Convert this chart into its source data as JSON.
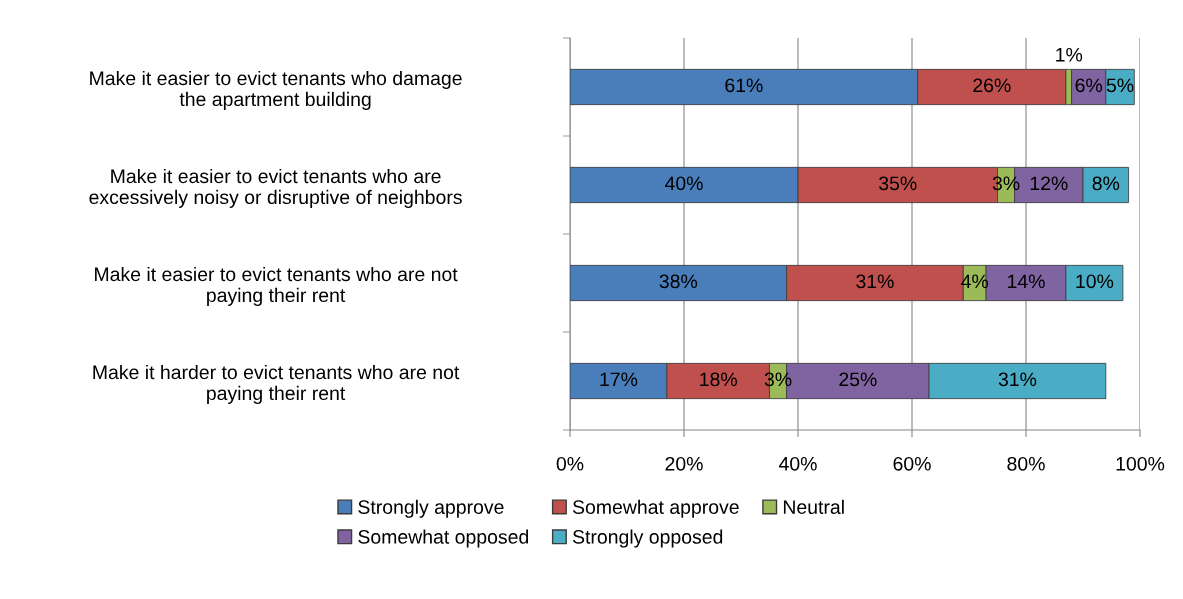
{
  "chart_data": {
    "type": "bar",
    "orientation": "horizontal",
    "stacked": true,
    "categories": [
      "Make it easier to evict tenants who damage\nthe apartment building",
      "Make it easier to evict tenants who are\nexcessively noisy or disruptive of neighbors",
      "Make it easier to evict tenants who are not\npaying their rent",
      "Make it harder to evict tenants who are not\npaying their rent"
    ],
    "series": [
      {
        "name": "Strongly approve",
        "color": "#4a7ebb",
        "values": [
          61,
          40,
          38,
          17
        ],
        "value_labels": [
          "61%",
          "40%",
          "38%",
          "17%"
        ]
      },
      {
        "name": "Somewhat approve",
        "color": "#c0504d",
        "values": [
          26,
          35,
          31,
          18
        ],
        "value_labels": [
          "26%",
          "35%",
          "31%",
          "18%"
        ]
      },
      {
        "name": "Neutral",
        "color": "#9bbb59",
        "values": [
          1,
          3,
          4,
          3
        ],
        "value_labels": [
          "1%",
          "3%",
          "4%",
          "3%"
        ]
      },
      {
        "name": "Somewhat opposed",
        "color": "#8064a2",
        "values": [
          6,
          12,
          14,
          25
        ],
        "value_labels": [
          "6%",
          "12%",
          "14%",
          "25%"
        ]
      },
      {
        "name": "Strongly opposed",
        "color": "#4bacc6",
        "values": [
          5,
          8,
          10,
          31
        ],
        "value_labels": [
          "5%",
          "8%",
          "10%",
          "31%"
        ]
      }
    ],
    "xlim": [
      0,
      100
    ],
    "xticks": [
      {
        "value": 0,
        "label": "0%"
      },
      {
        "value": 20,
        "label": "20%"
      },
      {
        "value": 40,
        "label": "40%"
      },
      {
        "value": 60,
        "label": "60%"
      },
      {
        "value": 80,
        "label": "80%"
      },
      {
        "value": 100,
        "label": "100%"
      }
    ],
    "grid": "x",
    "legend": "bottom"
  }
}
